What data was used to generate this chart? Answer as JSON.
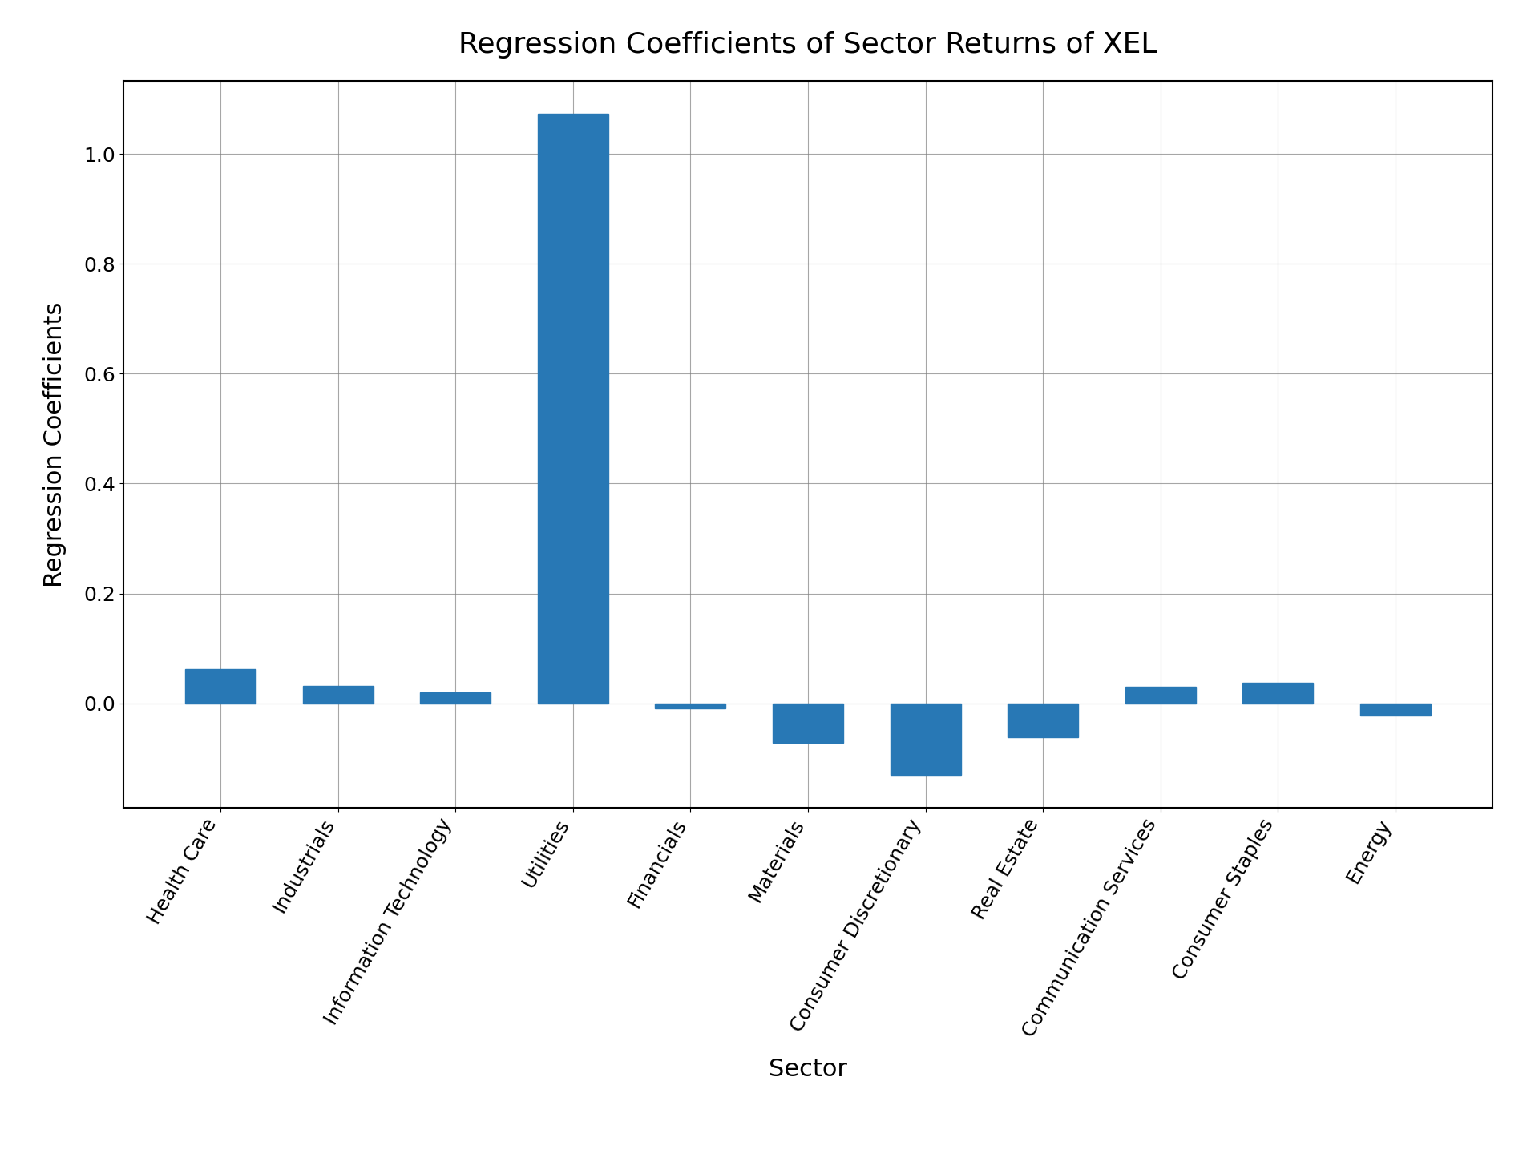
{
  "categories": [
    "Health Care",
    "Industrials",
    "Information Technology",
    "Utilities",
    "Financials",
    "Materials",
    "Consumer Discretionary",
    "Real Estate",
    "Communication Services",
    "Consumer Staples",
    "Energy"
  ],
  "values": [
    0.062,
    0.032,
    0.02,
    1.073,
    -0.01,
    -0.072,
    -0.13,
    -0.062,
    0.03,
    0.038,
    -0.022
  ],
  "bar_color": "#2878b5",
  "title": "Regression Coefficients of Sector Returns of XEL",
  "xlabel": "Sector",
  "ylabel": "Regression Coefficients",
  "title_fontsize": 26,
  "label_fontsize": 22,
  "tick_fontsize": 18,
  "background_color": "#ffffff",
  "grid": true,
  "fig_width": 19.2,
  "fig_height": 14.4,
  "dpi": 100
}
